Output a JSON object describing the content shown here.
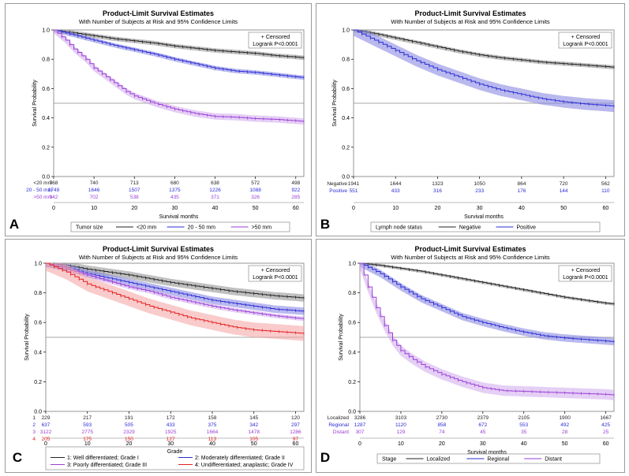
{
  "chart_data": [
    {
      "type": "line",
      "panel": "A",
      "title": "Product-Limit Survival Estimates",
      "subtitle": "With Number of Subjects at Risk and 95% Confidence Limits",
      "xlabel": "Survival months",
      "ylabel": "Survival Probability",
      "xticks": [
        0,
        10,
        20,
        30,
        40,
        50,
        60
      ],
      "yticks": [
        "0.0",
        "0.2",
        "0.4",
        "0.6",
        "0.8",
        "1.0"
      ],
      "xlim": [
        0,
        62
      ],
      "ylim": [
        0,
        1
      ],
      "refline": 0.5,
      "inset": {
        "censored": "+ Censored",
        "logrank": "Logrank P<0.0001"
      },
      "legend_title": "Tumor size",
      "series": [
        {
          "name": "<20 mm",
          "risk_label": "<20 mm",
          "color": "#222222",
          "band": "#8c8c8c",
          "x": [
            0,
            5,
            10,
            15,
            20,
            25,
            30,
            35,
            40,
            45,
            50,
            55,
            60,
            62
          ],
          "y": [
            1.0,
            0.98,
            0.96,
            0.94,
            0.925,
            0.91,
            0.89,
            0.875,
            0.86,
            0.85,
            0.84,
            0.825,
            0.815,
            0.81
          ],
          "ci": 0.015,
          "at_risk": [
            "768",
            "740",
            "713",
            "680",
            "638",
            "572",
            "498"
          ]
        },
        {
          "name": "20 - 50 mm",
          "risk_label": "20 - 50 mm",
          "color": "#2b2bd6",
          "band": "#8080e0",
          "x": [
            0,
            5,
            10,
            15,
            20,
            25,
            30,
            35,
            40,
            45,
            50,
            55,
            60,
            62
          ],
          "y": [
            1.0,
            0.965,
            0.93,
            0.895,
            0.865,
            0.835,
            0.8,
            0.77,
            0.74,
            0.72,
            0.71,
            0.695,
            0.68,
            0.675
          ],
          "ci": 0.015,
          "at_risk": [
            "1749",
            "1646",
            "1507",
            "1375",
            "1226",
            "1088",
            "922"
          ]
        },
        {
          "name": ">50 mm",
          "risk_label": ">50 mm",
          "color": "#9a3ed6",
          "band": "#cfa8ec",
          "x": [
            0,
            3,
            5,
            8,
            10,
            13,
            15,
            18,
            20,
            25,
            30,
            35,
            40,
            45,
            50,
            55,
            60,
            62
          ],
          "y": [
            1.0,
            0.93,
            0.87,
            0.8,
            0.74,
            0.68,
            0.64,
            0.58,
            0.55,
            0.5,
            0.46,
            0.43,
            0.41,
            0.405,
            0.395,
            0.39,
            0.38,
            0.375
          ],
          "ci": 0.022,
          "at_risk": [
            "942",
            "702",
            "538",
            "435",
            "371",
            "326",
            "285"
          ]
        }
      ]
    },
    {
      "type": "line",
      "panel": "B",
      "title": "Product-Limit Survival Estimates",
      "subtitle": "With Number of Subjects at Risk and 95% Confidence Limits",
      "xlabel": "Survival months",
      "ylabel": "Survival Probability",
      "xticks": [
        0,
        10,
        20,
        30,
        40,
        50,
        60
      ],
      "yticks": [
        "0.0",
        "0.2",
        "0.4",
        "0.6",
        "0.8",
        "1.0"
      ],
      "xlim": [
        0,
        62
      ],
      "ylim": [
        0,
        1
      ],
      "refline": 0.5,
      "inset": {
        "censored": "+ Censored",
        "logrank": "Logrank P<0.0001"
      },
      "legend_title": "Lymph node status",
      "series": [
        {
          "name": "Negative",
          "risk_label": "Negative",
          "color": "#222222",
          "band": "#8c8c8c",
          "x": [
            0,
            5,
            10,
            15,
            20,
            25,
            30,
            35,
            40,
            45,
            50,
            55,
            60,
            62
          ],
          "y": [
            1.0,
            0.975,
            0.945,
            0.915,
            0.885,
            0.855,
            0.83,
            0.81,
            0.795,
            0.78,
            0.77,
            0.76,
            0.75,
            0.745
          ],
          "ci": 0.014,
          "at_risk": [
            "1941",
            "1644",
            "1323",
            "1050",
            "864",
            "720",
            "562"
          ]
        },
        {
          "name": "Positive",
          "risk_label": "Positive",
          "color": "#2b2bd6",
          "band": "#8080e0",
          "x": [
            0,
            5,
            10,
            15,
            20,
            25,
            30,
            35,
            40,
            45,
            50,
            55,
            60,
            62
          ],
          "y": [
            1.0,
            0.93,
            0.86,
            0.79,
            0.73,
            0.68,
            0.63,
            0.59,
            0.56,
            0.53,
            0.51,
            0.495,
            0.485,
            0.48
          ],
          "ci": 0.04,
          "at_risk": [
            "551",
            "433",
            "316",
            "233",
            "176",
            "144",
            "110"
          ]
        }
      ]
    },
    {
      "type": "line",
      "panel": "C",
      "title": "Product-Limit Survival Estimates",
      "subtitle": "With Number of Subjects at Risk and 95% Confidence Limits",
      "xlabel": "Survival months",
      "ylabel": "Survival Probability",
      "xticks": [
        0,
        10,
        20,
        30,
        40,
        50,
        60
      ],
      "yticks": [
        "0.0",
        "0.2",
        "0.4",
        "0.6",
        "0.8",
        "1.0"
      ],
      "xlim": [
        0,
        62
      ],
      "ylim": [
        0,
        1
      ],
      "refline": 0.5,
      "inset": {
        "censored": "+ Censored",
        "logrank": "Logrank P<0.0001"
      },
      "legend_title": "Grade",
      "series": [
        {
          "name": "1: Well differentiated; Grade I",
          "risk_label": "1",
          "color": "#222222",
          "band": "#8c8c8c",
          "x": [
            0,
            5,
            10,
            15,
            20,
            25,
            30,
            35,
            40,
            45,
            50,
            55,
            60,
            62
          ],
          "y": [
            1.0,
            0.985,
            0.96,
            0.94,
            0.92,
            0.895,
            0.87,
            0.85,
            0.83,
            0.81,
            0.795,
            0.78,
            0.77,
            0.765
          ],
          "ci": 0.025,
          "at_risk": [
            "229",
            "217",
            "191",
            "172",
            "158",
            "145",
            "120"
          ]
        },
        {
          "name": "2: Moderately differentiated; Grade II",
          "risk_label": "2",
          "color": "#2b2bd6",
          "band": "#8080e0",
          "x": [
            0,
            5,
            10,
            15,
            20,
            25,
            30,
            35,
            40,
            45,
            50,
            55,
            60,
            62
          ],
          "y": [
            1.0,
            0.97,
            0.93,
            0.9,
            0.87,
            0.84,
            0.81,
            0.78,
            0.75,
            0.73,
            0.71,
            0.69,
            0.68,
            0.675
          ],
          "ci": 0.025,
          "at_risk": [
            "637",
            "593",
            "505",
            "433",
            "375",
            "342",
            "297"
          ]
        },
        {
          "name": "3: Poorly differentiated; Grade III",
          "risk_label": "3",
          "color": "#9a3ed6",
          "band": "#cfa8ec",
          "x": [
            0,
            5,
            10,
            15,
            20,
            25,
            30,
            35,
            40,
            45,
            50,
            55,
            60,
            62
          ],
          "y": [
            1.0,
            0.96,
            0.92,
            0.88,
            0.84,
            0.81,
            0.77,
            0.74,
            0.71,
            0.685,
            0.665,
            0.645,
            0.63,
            0.625
          ],
          "ci": 0.015,
          "at_risk": [
            "3122",
            "2775",
            "2329",
            "1925",
            "1664",
            "1478",
            "1286"
          ]
        },
        {
          "name": "4: Undifferentiated; anaplastic; Grade IV",
          "risk_label": "4",
          "color": "#e32020",
          "band": "#f4a0a0",
          "x": [
            0,
            5,
            10,
            15,
            20,
            25,
            30,
            35,
            40,
            45,
            50,
            55,
            60,
            62
          ],
          "y": [
            1.0,
            0.94,
            0.86,
            0.81,
            0.76,
            0.71,
            0.67,
            0.63,
            0.6,
            0.57,
            0.55,
            0.54,
            0.53,
            0.525
          ],
          "ci": 0.05,
          "at_risk": [
            "205",
            "175",
            "150",
            "127",
            "113",
            "105",
            "97"
          ]
        }
      ]
    },
    {
      "type": "line",
      "panel": "D",
      "title": "Product-Limit Survival Estimates",
      "subtitle": "With Number of Subjects at Risk and 95% Confidence Limits",
      "xlabel": "Survival months",
      "ylabel": "Survival Probability",
      "xticks": [
        0,
        10,
        20,
        30,
        40,
        50,
        60
      ],
      "yticks": [
        "0.0",
        "0.2",
        "0.4",
        "0.6",
        "0.8",
        "1.0"
      ],
      "xlim": [
        0,
        62
      ],
      "ylim": [
        0,
        1
      ],
      "refline": 0.5,
      "inset": {
        "censored": "+ Censored",
        "logrank": "Logrank P<0.0001"
      },
      "legend_title": "Stage",
      "series": [
        {
          "name": "Localized",
          "risk_label": "Localized",
          "color": "#222222",
          "band": "#8c8c8c",
          "x": [
            0,
            5,
            10,
            15,
            20,
            25,
            30,
            35,
            40,
            45,
            50,
            55,
            60,
            62
          ],
          "y": [
            1.0,
            0.985,
            0.965,
            0.945,
            0.92,
            0.895,
            0.87,
            0.845,
            0.82,
            0.795,
            0.77,
            0.75,
            0.73,
            0.725
          ],
          "ci": 0.01,
          "at_risk": [
            "3286",
            "3103",
            "2730",
            "2379",
            "2105",
            "1900",
            "1667"
          ]
        },
        {
          "name": "Regional",
          "risk_label": "Regional",
          "color": "#2b2bd6",
          "band": "#8080e0",
          "x": [
            0,
            5,
            10,
            15,
            20,
            25,
            30,
            35,
            40,
            45,
            50,
            55,
            60,
            62
          ],
          "y": [
            1.0,
            0.93,
            0.84,
            0.76,
            0.7,
            0.64,
            0.6,
            0.565,
            0.535,
            0.51,
            0.495,
            0.485,
            0.475,
            0.47
          ],
          "ci": 0.025,
          "at_risk": [
            "1287",
            "1120",
            "858",
            "672",
            "553",
            "492",
            "425"
          ]
        },
        {
          "name": "Distant",
          "risk_label": "Distant",
          "color": "#9a3ed6",
          "band": "#cfa8ec",
          "x": [
            0,
            2,
            4,
            6,
            8,
            10,
            13,
            16,
            20,
            25,
            30,
            35,
            40,
            45,
            50,
            55,
            60,
            62
          ],
          "y": [
            1.0,
            0.84,
            0.7,
            0.58,
            0.48,
            0.41,
            0.35,
            0.3,
            0.25,
            0.2,
            0.16,
            0.14,
            0.135,
            0.13,
            0.125,
            0.12,
            0.115,
            0.11
          ],
          "ci": 0.035,
          "at_risk": [
            "307",
            "129",
            "74",
            "45",
            "35",
            "28",
            "25"
          ]
        }
      ]
    }
  ]
}
